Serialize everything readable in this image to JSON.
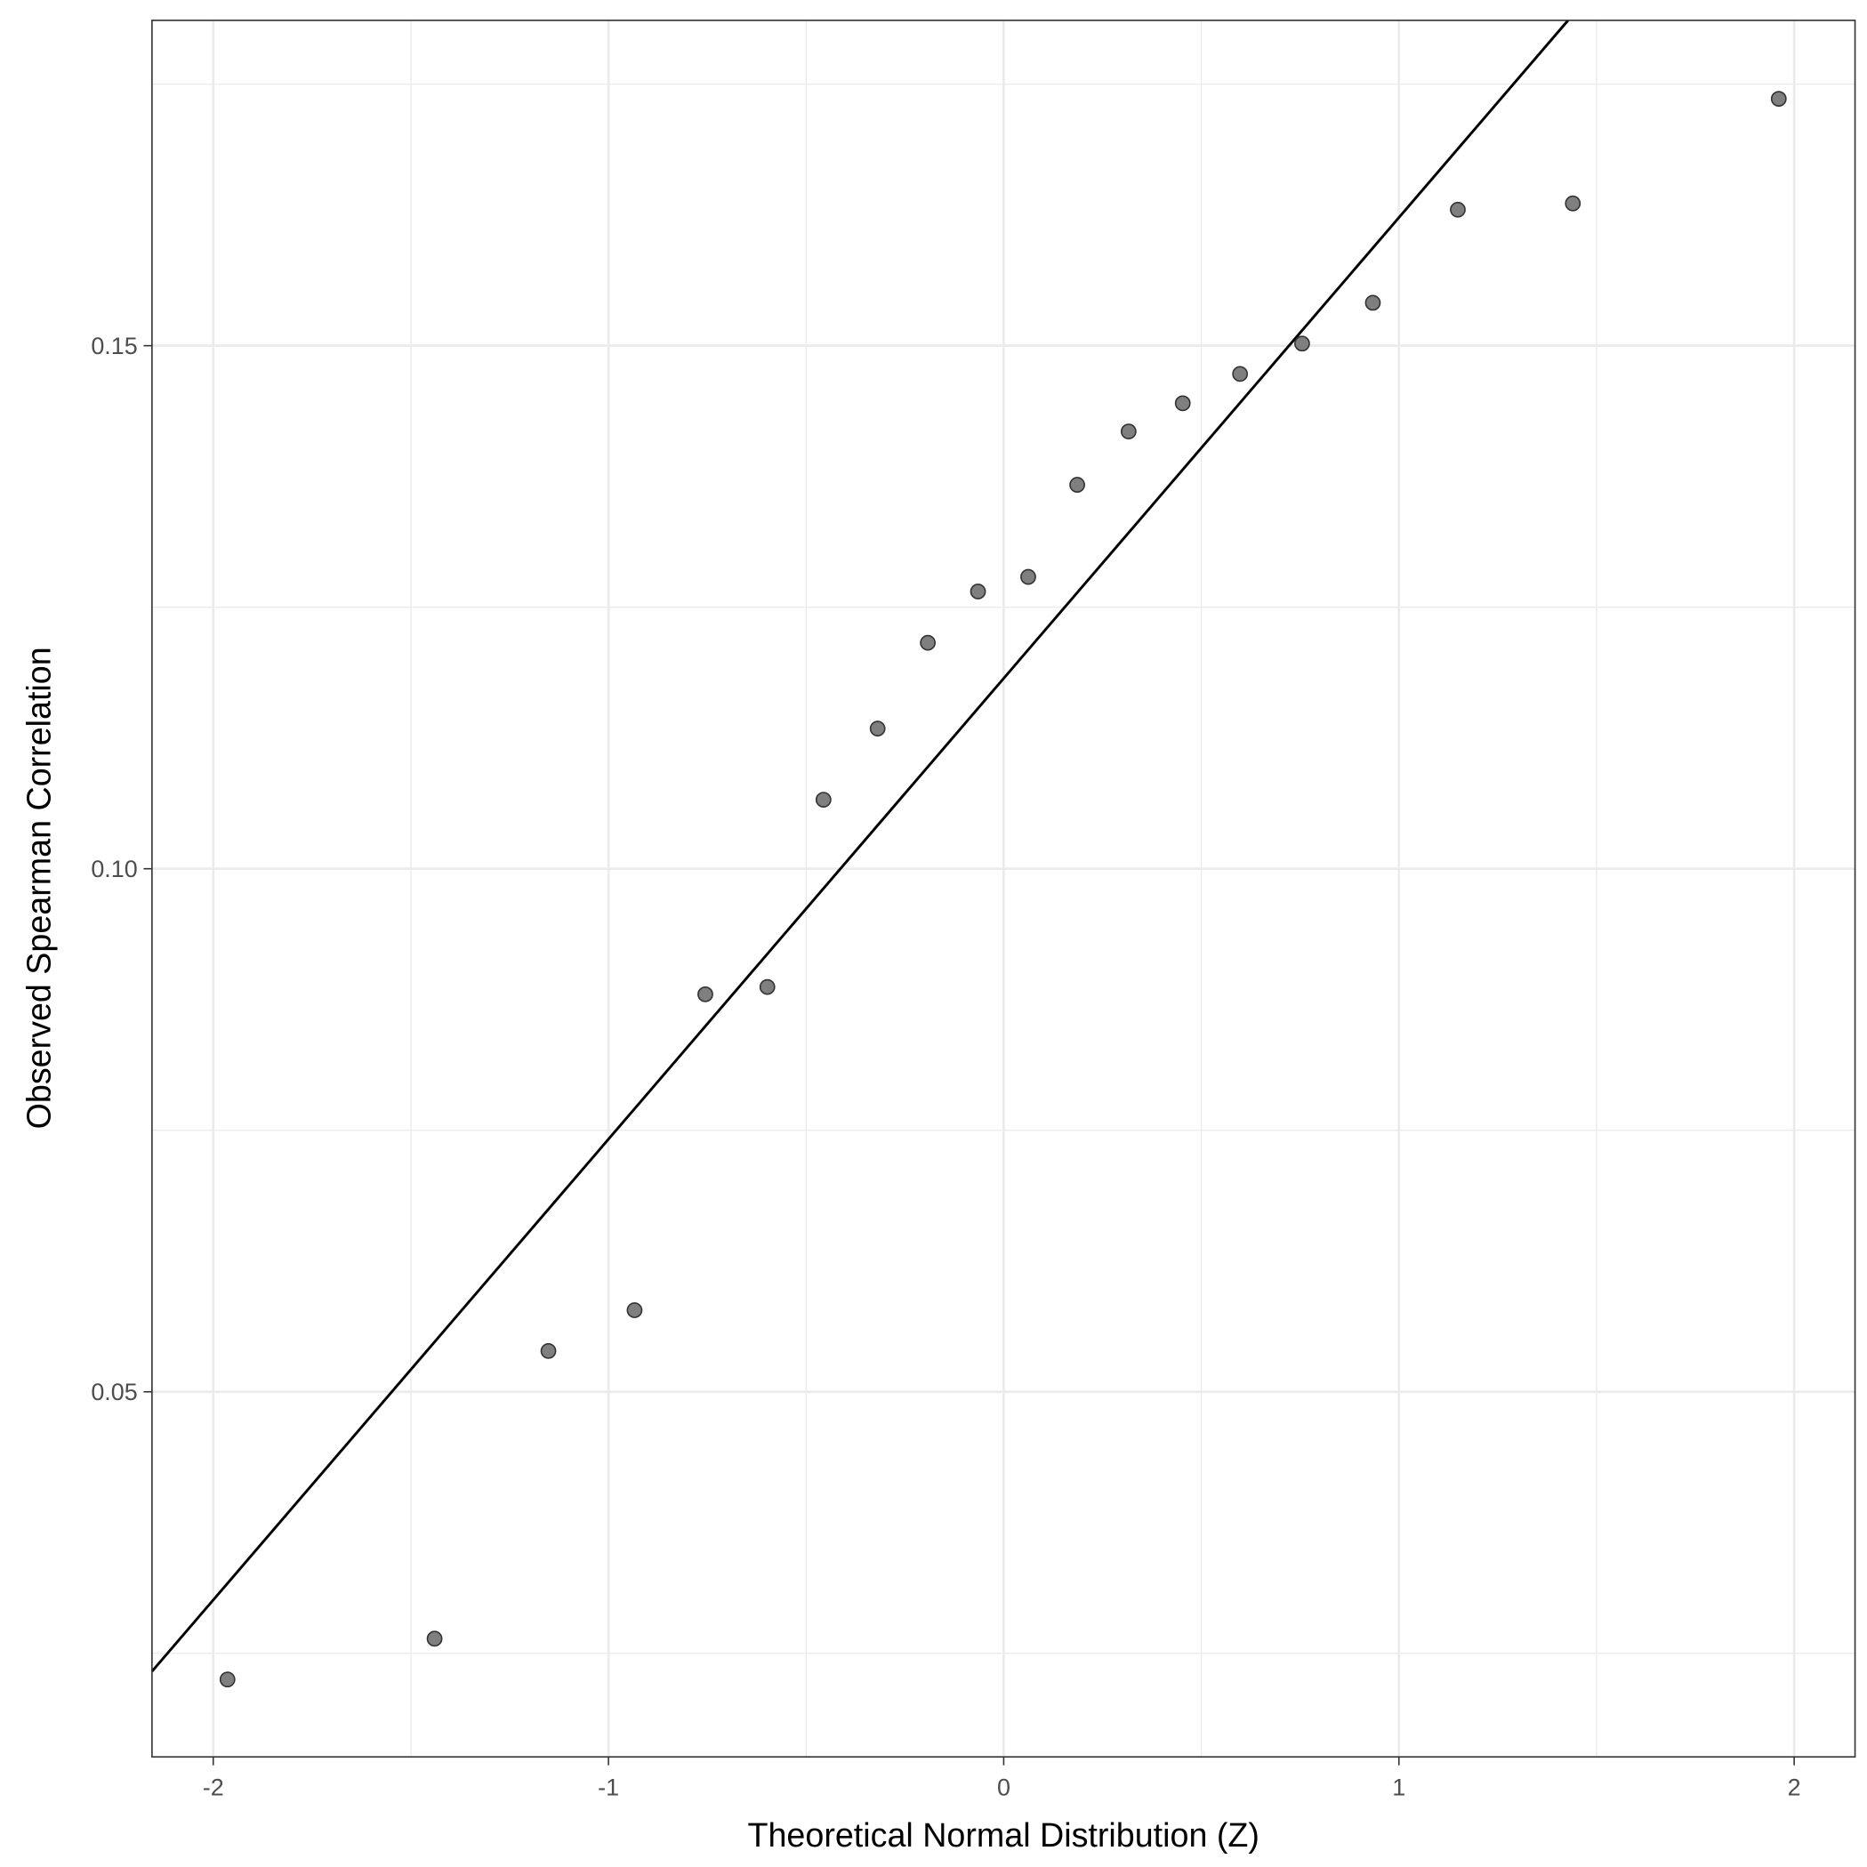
{
  "chart_data": {
    "type": "scatter",
    "title": "",
    "xlabel": "Theoretical Normal Distribution (Z)",
    "ylabel": "Observed Spearman Correlation",
    "xlim": [
      -2.155,
      2.154
    ],
    "ylim": [
      0.0151,
      0.1811
    ],
    "grid": true,
    "x_ticks": [
      -2,
      -1,
      0,
      1,
      2
    ],
    "x_tick_labels": [
      "-2",
      "-1",
      "0",
      "1",
      "2"
    ],
    "y_ticks": [
      0.05,
      0.1,
      0.15
    ],
    "y_tick_labels": [
      "0.05",
      "0.10",
      "0.15"
    ],
    "x_minor": [
      -1.5,
      -0.5,
      0.5,
      1.5
    ],
    "y_minor": [
      0.025,
      0.075,
      0.125,
      0.175
    ],
    "points": [
      {
        "x": -1.964,
        "y": 0.0225
      },
      {
        "x": -1.44,
        "y": 0.0264
      },
      {
        "x": -1.152,
        "y": 0.0539
      },
      {
        "x": -0.934,
        "y": 0.0578
      },
      {
        "x": -0.755,
        "y": 0.088
      },
      {
        "x": -0.598,
        "y": 0.0887
      },
      {
        "x": -0.456,
        "y": 0.1066
      },
      {
        "x": -0.319,
        "y": 0.1134
      },
      {
        "x": -0.192,
        "y": 0.1216
      },
      {
        "x": -0.065,
        "y": 0.1265
      },
      {
        "x": 0.062,
        "y": 0.1279
      },
      {
        "x": 0.186,
        "y": 0.1367
      },
      {
        "x": 0.316,
        "y": 0.1418
      },
      {
        "x": 0.453,
        "y": 0.1445
      },
      {
        "x": 0.598,
        "y": 0.1473
      },
      {
        "x": 0.755,
        "y": 0.1502
      },
      {
        "x": 0.934,
        "y": 0.1541
      },
      {
        "x": 1.149,
        "y": 0.163
      },
      {
        "x": 1.44,
        "y": 0.1636
      },
      {
        "x": 1.961,
        "y": 0.1736
      }
    ],
    "reference_line": {
      "slope": 0.04405,
      "intercept": 0.1182
    },
    "colors": {
      "point_fill": "#7f7f7f",
      "point_stroke": "#333333",
      "line": "#000000",
      "grid": "#ebebeb"
    }
  }
}
